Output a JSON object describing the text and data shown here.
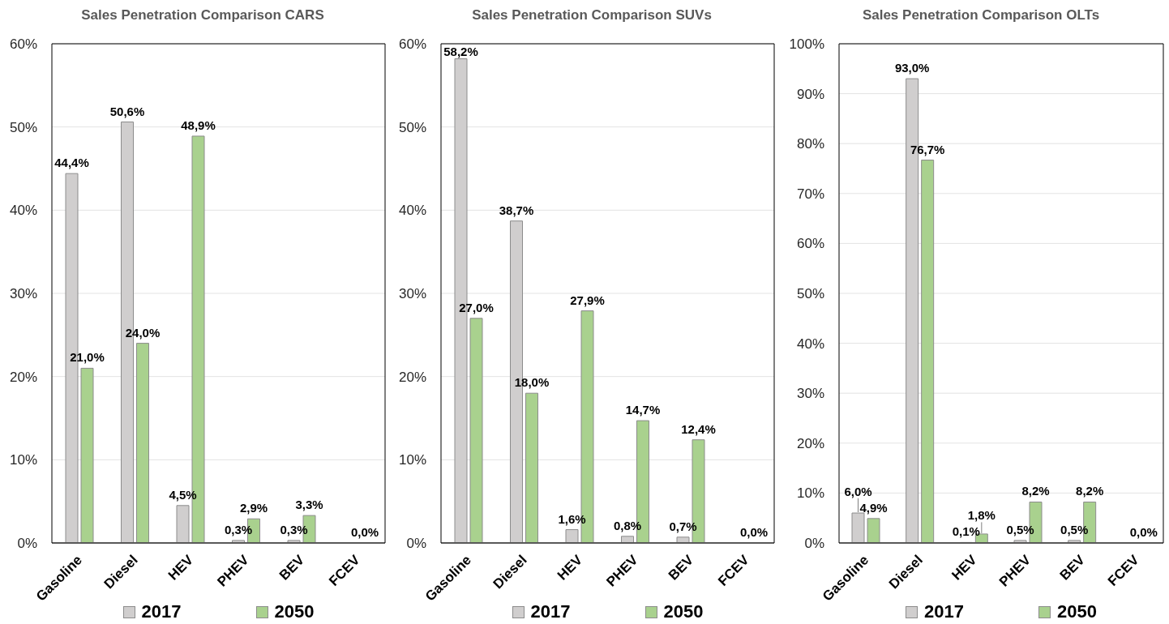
{
  "chart_data": [
    {
      "type": "bar",
      "title": "Sales Penetration Comparison CARS",
      "categories": [
        "Gasoline",
        "Diesel",
        "HEV",
        "PHEV",
        "BEV",
        "FCEV"
      ],
      "series": [
        {
          "name": "2017",
          "color": "#d0cece",
          "values": [
            44.4,
            50.6,
            4.5,
            0.3,
            0.3,
            0.0
          ],
          "value_labels": [
            "44,4%",
            "50,6%",
            "4,5%",
            "0,3%",
            "0,3%",
            null
          ]
        },
        {
          "name": "2050",
          "color": "#a9d18e",
          "values": [
            21.0,
            24.0,
            48.9,
            2.9,
            3.3,
            0.0
          ],
          "value_labels": [
            "21,0%",
            "24,0%",
            "48,9%",
            "2,9%",
            "3,3%",
            "0,0%"
          ]
        }
      ],
      "ylim": [
        0,
        60
      ],
      "yticks": [
        {
          "value": 0,
          "label": "0%"
        },
        {
          "value": 10,
          "label": "10%"
        },
        {
          "value": 20,
          "label": "20%"
        },
        {
          "value": 30,
          "label": "30%"
        },
        {
          "value": 40,
          "label": "40%"
        },
        {
          "value": 50,
          "label": "50%"
        },
        {
          "value": 60,
          "label": "60%"
        }
      ],
      "grid": "y",
      "legend": "bottom"
    },
    {
      "type": "bar",
      "title": "Sales Penetration Comparison SUVs",
      "categories": [
        "Gasoline",
        "Diesel",
        "HEV",
        "PHEV",
        "BEV",
        "FCEV"
      ],
      "series": [
        {
          "name": "2017",
          "color": "#d0cece",
          "values": [
            58.2,
            38.7,
            1.6,
            0.8,
            0.7,
            0.0
          ],
          "value_labels": [
            "58,2%",
            "38,7%",
            "1,6%",
            "0,8%",
            "0,7%",
            null
          ]
        },
        {
          "name": "2050",
          "color": "#a9d18e",
          "values": [
            27.0,
            18.0,
            27.9,
            14.7,
            12.4,
            0.0
          ],
          "value_labels": [
            "27,0%",
            "18,0%",
            "27,9%",
            "14,7%",
            "12,4%",
            "0,0%"
          ]
        }
      ],
      "ylim": [
        0,
        60
      ],
      "yticks": [
        {
          "value": 0,
          "label": "0%"
        },
        {
          "value": 10,
          "label": "10%"
        },
        {
          "value": 20,
          "label": "20%"
        },
        {
          "value": 30,
          "label": "30%"
        },
        {
          "value": 40,
          "label": "40%"
        },
        {
          "value": 50,
          "label": "50%"
        },
        {
          "value": 60,
          "label": "60%"
        }
      ],
      "grid": "y",
      "legend": "bottom"
    },
    {
      "type": "bar",
      "title": "Sales Penetration Comparison OLTs",
      "categories": [
        "Gasoline",
        "Diesel",
        "HEV",
        "PHEV",
        "BEV",
        "FCEV"
      ],
      "series": [
        {
          "name": "2017",
          "color": "#d0cece",
          "values": [
            6.0,
            93.0,
            0.1,
            0.5,
            0.5,
            0.0
          ],
          "value_labels": [
            "6,0%",
            "93,0%",
            "0,1%",
            "0,5%",
            "0,5%",
            null
          ]
        },
        {
          "name": "2050",
          "color": "#a9d18e",
          "values": [
            4.9,
            76.7,
            1.8,
            8.2,
            8.2,
            0.0
          ],
          "value_labels": [
            "4,9%",
            "76,7%",
            "1,8%",
            "8,2%",
            "8,2%",
            "0,0%"
          ]
        }
      ],
      "ylim": [
        0,
        100
      ],
      "yticks": [
        {
          "value": 0,
          "label": "0%"
        },
        {
          "value": 10,
          "label": "10%"
        },
        {
          "value": 20,
          "label": "20%"
        },
        {
          "value": 30,
          "label": "30%"
        },
        {
          "value": 40,
          "label": "40%"
        },
        {
          "value": 50,
          "label": "50%"
        },
        {
          "value": 60,
          "label": "60%"
        },
        {
          "value": 70,
          "label": "70%"
        },
        {
          "value": 80,
          "label": "80%"
        },
        {
          "value": 90,
          "label": "90%"
        },
        {
          "value": 100,
          "label": "100%"
        }
      ],
      "grid": "y",
      "legend": "bottom"
    }
  ]
}
